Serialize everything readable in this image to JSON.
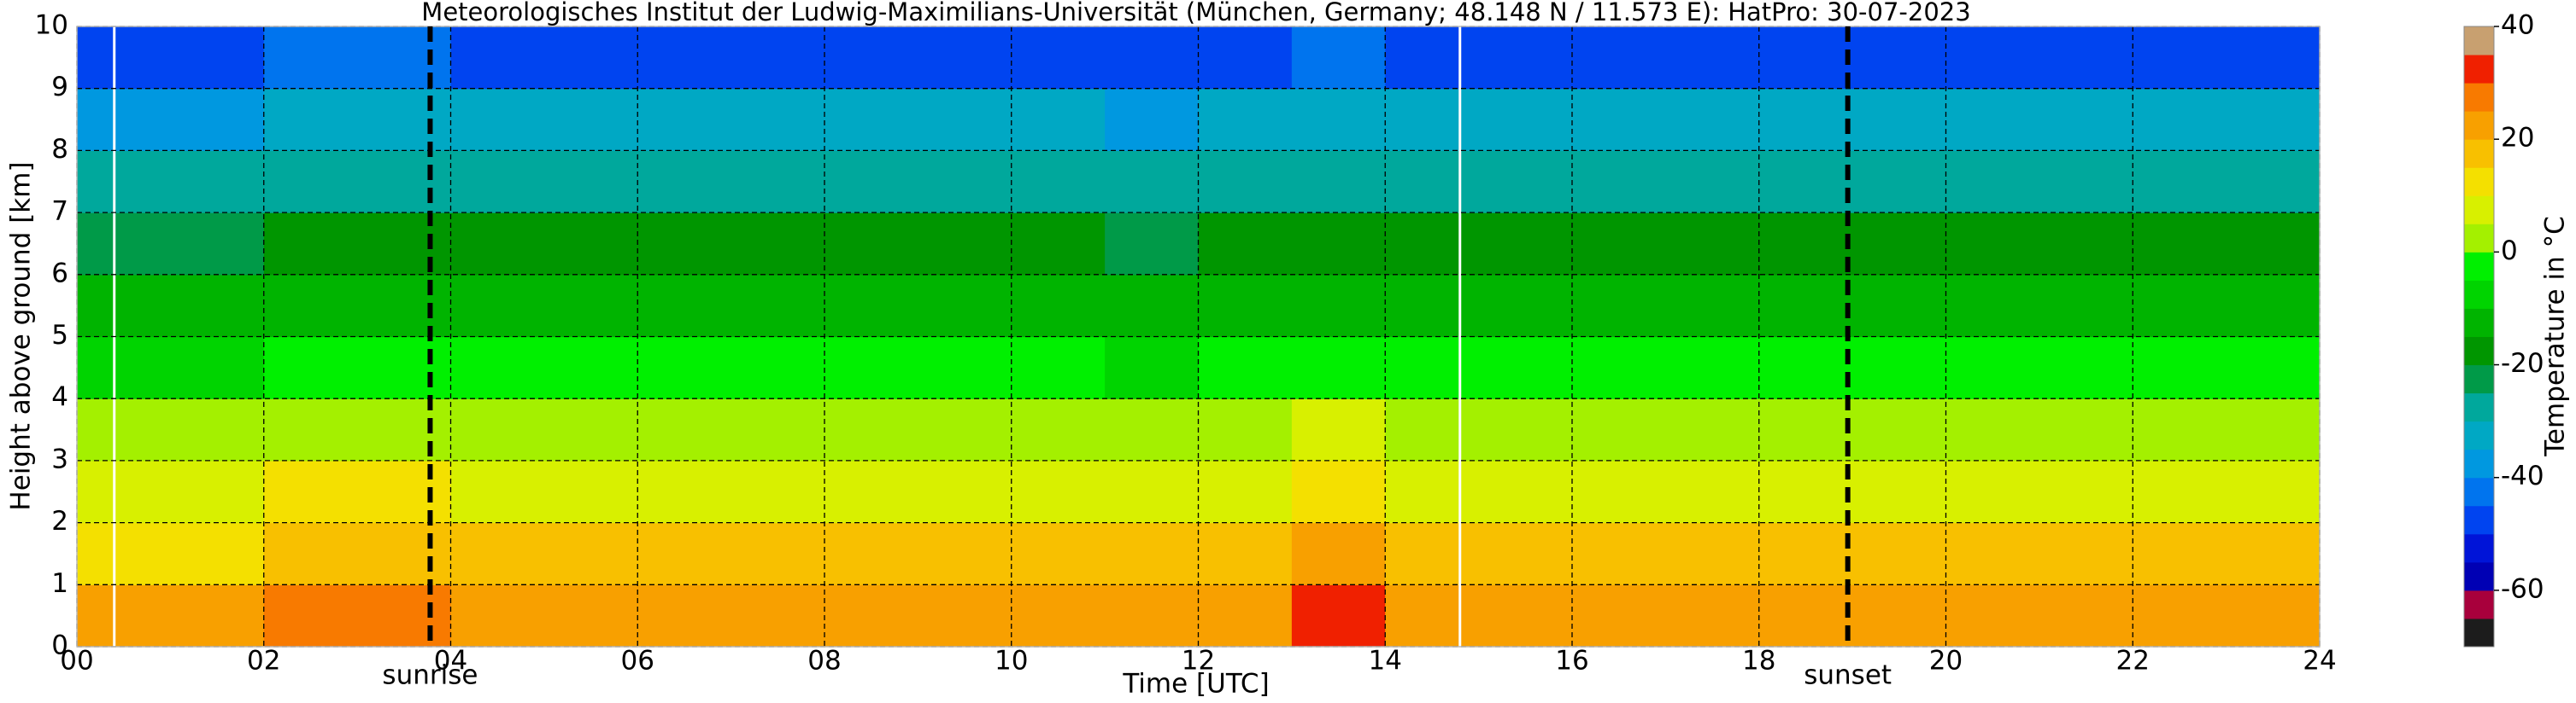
{
  "chart_data": {
    "type": "heatmap",
    "title": "Meteorologisches Institut der Ludwig-Maximilians-Universität (München, Germany; 48.148 N / 11.573 E):    HatPro: 30-07-2023",
    "xlabel": "Time [UTC]",
    "ylabel": "Height above ground [km]",
    "xlim": [
      0,
      24
    ],
    "ylim": [
      0,
      10
    ],
    "xticks": [
      {
        "value": 0,
        "label": "00"
      },
      {
        "value": 2,
        "label": "02"
      },
      {
        "value": 4,
        "label": "04"
      },
      {
        "value": 6,
        "label": "06"
      },
      {
        "value": 8,
        "label": "08"
      },
      10,
      12,
      14,
      16,
      18,
      20,
      22,
      24
    ],
    "yticks": [
      0,
      1,
      2,
      3,
      4,
      5,
      6,
      7,
      8,
      9,
      10
    ],
    "grid": true,
    "xbins": [
      0,
      1,
      2,
      3,
      4,
      5,
      6,
      7,
      8,
      9,
      10,
      11,
      12,
      13,
      14,
      15,
      16,
      17,
      18,
      19,
      20,
      21,
      22,
      23,
      24
    ],
    "ybins": [
      0,
      1,
      2,
      3,
      4,
      5,
      6,
      7,
      8,
      9,
      10
    ],
    "values": [
      [
        21,
        21,
        27,
        28,
        22,
        22,
        22,
        22,
        23,
        23,
        23,
        23,
        23,
        30,
        22,
        24,
        24,
        24,
        23,
        22,
        22,
        22,
        22,
        22
      ],
      [
        14,
        14,
        16,
        17,
        15,
        15,
        15,
        15,
        15,
        15,
        15,
        15,
        15,
        20,
        15,
        15,
        15,
        15,
        15,
        15,
        15,
        15,
        15,
        15
      ],
      [
        8,
        8,
        10,
        11,
        9,
        9,
        9,
        9,
        9,
        9,
        9,
        7,
        9,
        13,
        9,
        9,
        9,
        9,
        9,
        9,
        9,
        9,
        9,
        9
      ],
      [
        1,
        1,
        3,
        4,
        2,
        2,
        2,
        2,
        2,
        2,
        2,
        1,
        2,
        5,
        2,
        2,
        2,
        2,
        2,
        2,
        2,
        2,
        2,
        2
      ],
      [
        -6,
        -6,
        -5,
        -5,
        -5,
        -5,
        -5,
        -5,
        -5,
        -5,
        -5,
        -7,
        -5,
        -4,
        -5,
        -5,
        -5,
        -5,
        -5,
        -5,
        -5,
        -5,
        -5,
        -5
      ],
      [
        -13,
        -13,
        -12,
        -12,
        -12,
        -12,
        -12,
        -12,
        -12,
        -12,
        -12,
        -13,
        -12,
        -11,
        -12,
        -12,
        -12,
        -12,
        -12,
        -12,
        -12,
        -12,
        -12,
        -12
      ],
      [
        -21,
        -21,
        -18,
        -18,
        -19,
        -20,
        -20,
        -20,
        -20,
        -20,
        -20,
        -22,
        -20,
        -17,
        -20,
        -20,
        -20,
        -20,
        -20,
        -20,
        -20,
        -20,
        -20,
        -20
      ],
      [
        -28,
        -28,
        -27,
        -27,
        -27,
        -27,
        -27,
        -27,
        -27,
        -27,
        -27,
        -29,
        -27,
        -26,
        -27,
        -27,
        -27,
        -27,
        -27,
        -27,
        -27,
        -27,
        -27,
        -27
      ],
      [
        -36,
        -36,
        -35,
        -35,
        -35,
        -35,
        -35,
        -35,
        -35,
        -35,
        -35,
        -37,
        -35,
        -34,
        -35,
        -35,
        -35,
        -35,
        -35,
        -35,
        -35,
        -35,
        -35,
        -35
      ],
      [
        -47,
        -47,
        -45,
        -45,
        -47,
        -47,
        -47,
        -47,
        -47,
        -47,
        -47,
        -48,
        -47,
        -44,
        -47,
        -47,
        -47,
        -47,
        -47,
        -47,
        -47,
        -47,
        -47,
        -47
      ]
    ],
    "gap_lines": [
      0.4,
      14.8
    ],
    "events": [
      {
        "label": "sunrise",
        "x": 3.78
      },
      {
        "label": "sunset",
        "x": 18.95
      }
    ],
    "colorbar": {
      "label": "Temperature in °C",
      "lim": [
        -70,
        40
      ],
      "ticks": [
        -60,
        -40,
        -20,
        0,
        20,
        40
      ],
      "bounds": [
        -70,
        -65,
        -60,
        -55,
        -50,
        -45,
        -40,
        -35,
        -30,
        -25,
        -20,
        -15,
        -10,
        -5,
        0,
        5,
        10,
        15,
        20,
        25,
        30,
        35,
        40
      ],
      "colors": [
        "#1c1c1c",
        "#a8003c",
        "#0000b4",
        "#0014d8",
        "#0044f0",
        "#0074ee",
        "#0098e0",
        "#00a8c4",
        "#00a89c",
        "#009a48",
        "#009600",
        "#00b400",
        "#00d400",
        "#00f000",
        "#a4f000",
        "#d8f000",
        "#f4e000",
        "#f8c000",
        "#f8a000",
        "#f87a00",
        "#f02000",
        "#c8a070"
      ]
    }
  }
}
